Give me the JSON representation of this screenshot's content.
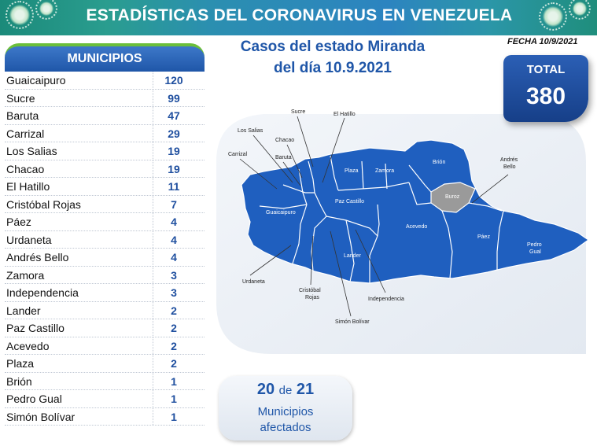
{
  "header": {
    "title": "ESTADÍSTICAS DEL CORONAVIRUS EN VENEZUELA",
    "date": "FECHA 10/9/2021"
  },
  "map_title": {
    "line1": "Casos del estado Miranda",
    "line2": "del día 10.9.2021"
  },
  "total": {
    "label": "TOTAL",
    "value": "380"
  },
  "municipios": {
    "header": "MUNICIPIOS",
    "rows": [
      {
        "name": "Guaicaipuro",
        "value": "120"
      },
      {
        "name": "Sucre",
        "value": "99"
      },
      {
        "name": "Baruta",
        "value": "47"
      },
      {
        "name": "Carrizal",
        "value": "29"
      },
      {
        "name": "Los Salias",
        "value": "19"
      },
      {
        "name": "Chacao",
        "value": "19"
      },
      {
        "name": "El Hatillo",
        "value": "11"
      },
      {
        "name": "Cristóbal Rojas",
        "value": "7"
      },
      {
        "name": "Páez",
        "value": "4"
      },
      {
        "name": "Urdaneta",
        "value": "4"
      },
      {
        "name": "Andrés Bello",
        "value": "4"
      },
      {
        "name": "Zamora",
        "value": "3"
      },
      {
        "name": "Independencia",
        "value": "3"
      },
      {
        "name": "Lander",
        "value": "2"
      },
      {
        "name": "Paz Castillo",
        "value": "2"
      },
      {
        "name": "Acevedo",
        "value": "2"
      },
      {
        "name": "Plaza",
        "value": "2"
      },
      {
        "name": "Brión",
        "value": "1"
      },
      {
        "name": "Pedro Gual",
        "value": "1"
      },
      {
        "name": "Simón Bolívar",
        "value": "1"
      }
    ]
  },
  "map_labels": {
    "sucre": "Sucre",
    "el_hatillo": "El Hatillo",
    "los_salias": "Los Salias",
    "chacao": "Chacao",
    "carrizal": "Carrizal",
    "baruta": "Baruta",
    "plaza": "Plaza",
    "zamora": "Zamora",
    "brion": "Brión",
    "andres_bello_1": "Andrés",
    "andres_bello_2": "Bello",
    "buroz": "Buroz",
    "guaicaipuro": "Guaicaipuro",
    "paz_castillo": "Paz Castillo",
    "acevedo": "Acevedo",
    "paez": "Páez",
    "pedro_gual_1": "Pedro",
    "pedro_gual_2": "Gual",
    "lander": "Lander",
    "urdaneta": "Urdaneta",
    "cristobal_rojas_1": "Cristóbal",
    "cristobal_rojas_2": "Rojas",
    "independencia": "Independencia",
    "simon_bolivar": "Simón Bolívar"
  },
  "affected": {
    "count": "20",
    "of": "de",
    "total": "21",
    "line1": "Municipios",
    "line2": "afectados"
  },
  "colors": {
    "map_fill": "#1f5fbf",
    "buroz_fill": "#9a9a9a",
    "accent_blue": "#1f56a8",
    "banner_teal": "#2a9d8f"
  }
}
